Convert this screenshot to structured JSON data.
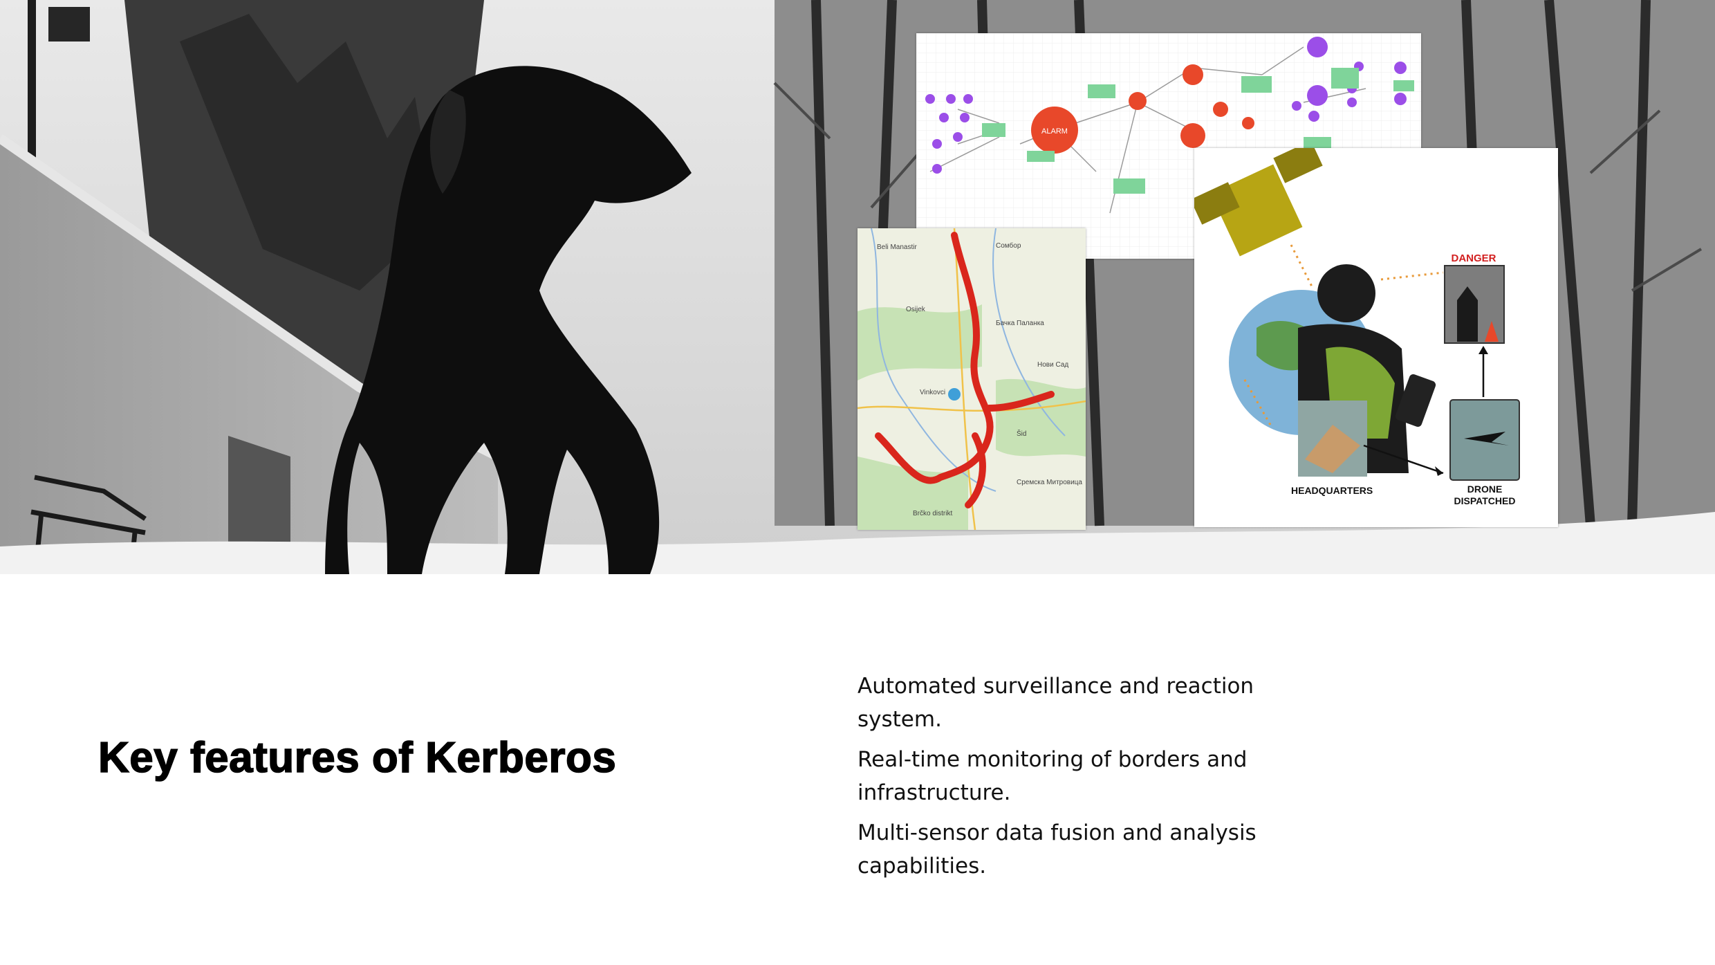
{
  "slide": {
    "title": "Key features of Kerberos",
    "features": [
      "Automated surveillance and reaction system.",
      "Real-time monitoring of borders and infrastructure.",
      "Multi-sensor data fusion and analysis capabilities."
    ]
  },
  "graph_diagram": {
    "central_node": "ALARM"
  },
  "map": {
    "places": [
      "Beli Manastir",
      "Сомбор",
      "Osijek",
      "Vinkovci",
      "Бачка Паланка",
      "Нови Сад",
      "Šid",
      "Brčko distrikt",
      "Сремска Митровица"
    ]
  },
  "info_graphic": {
    "danger_label": "DANGER",
    "headquarters_label": "HEADQUARTERS",
    "drone_label_line1": "DRONE",
    "drone_label_line2": "DISPATCHED"
  },
  "colors": {
    "text": "#111111",
    "alarm_red": "#e8482a",
    "purple_node": "#9b4ee8",
    "green_note": "#7fd49a",
    "map_route_red": "#d9261c",
    "danger_red": "#d21f1f"
  }
}
